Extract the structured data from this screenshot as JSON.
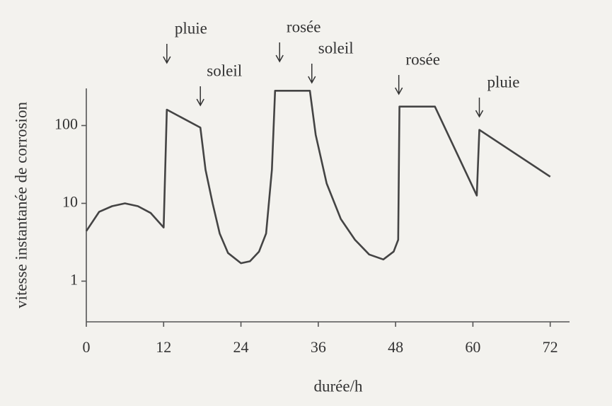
{
  "chart_data": {
    "type": "line",
    "x_label": "durée/h",
    "y_label": "vitesse instantanée de corrosion",
    "log_y": true,
    "xlim": [
      0,
      75
    ],
    "ylim": [
      0.3,
      300
    ],
    "xticks": [
      0,
      12,
      24,
      36,
      48,
      60,
      72
    ],
    "yticks": [
      1,
      10,
      100
    ],
    "series": [
      {
        "color": "#444444",
        "x": [
          0,
          2,
          4,
          6,
          8,
          10,
          12,
          12.5,
          17.7,
          18.5,
          19.6,
          20.7,
          22,
          24,
          25.4,
          26.8,
          27.9,
          28.8,
          29.3,
          34.7,
          35.6,
          37.3,
          39.5,
          41.7,
          43.9,
          46.1,
          47.7,
          48.4,
          48.6,
          54.1,
          60.6,
          61.0,
          72
        ],
        "values": [
          4.4,
          7.8,
          9.2,
          10,
          9.2,
          7.5,
          4.9,
          160,
          94,
          27,
          10,
          4.1,
          2.3,
          1.7,
          1.8,
          2.4,
          4.1,
          27,
          280,
          280,
          76,
          18,
          6.3,
          3.4,
          2.2,
          1.9,
          2.4,
          3.4,
          175,
          175,
          12.6,
          88,
          22
        ]
      }
    ],
    "annotations": [
      {
        "text": "pluie",
        "x": 12.5
      },
      {
        "text": "soleil",
        "x": 17.7
      },
      {
        "text": "rosée",
        "x": 30
      },
      {
        "text": "soleil",
        "x": 35
      },
      {
        "text": "rosée",
        "x": 48.5
      },
      {
        "text": "pluie",
        "x": 61
      }
    ]
  }
}
